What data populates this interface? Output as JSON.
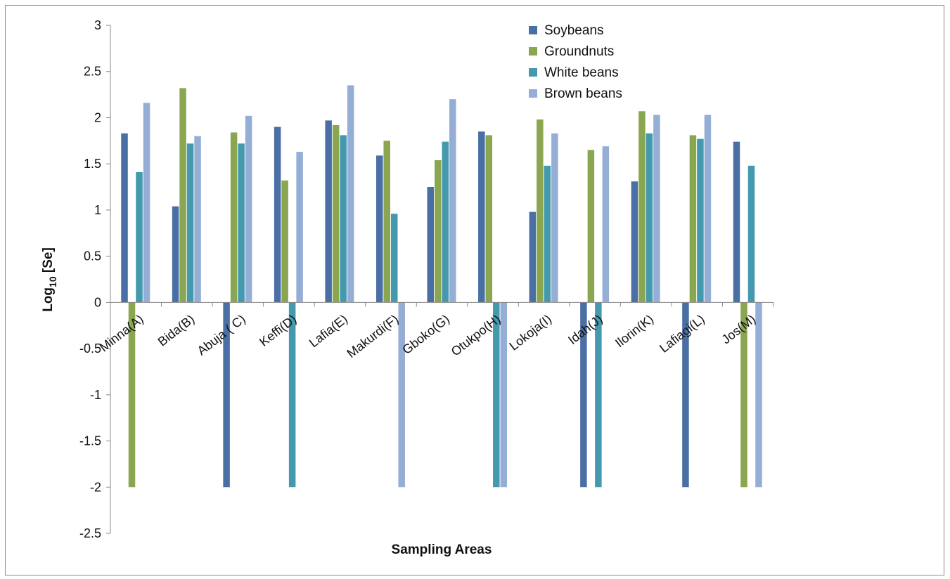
{
  "chart_data": {
    "type": "bar",
    "title": "",
    "xlabel": "Sampling Areas",
    "ylabel_main": "Log",
    "ylabel_sub": "10",
    "ylabel_rest": " [Se]",
    "ylim": [
      -2.5,
      3
    ],
    "yticks": [
      "3",
      "2.5",
      "2",
      "1.5",
      "1",
      "0.5",
      "0",
      "-0.5",
      "-1",
      "-1.5",
      "-2",
      "-2.5"
    ],
    "ytick_values": [
      3,
      2.5,
      2,
      1.5,
      1,
      0.5,
      0,
      -0.5,
      -1,
      -1.5,
      -2,
      -2.5
    ],
    "grid": false,
    "legend_position": "top-right",
    "categories": [
      "Minna(A)",
      "Bida(B)",
      "Abuja ( C)",
      "Keffi(D)",
      "Lafia(E)",
      "Makurdi(F)",
      "Gboko(G)",
      "Otukpo(H)",
      "Lokoja(I)",
      "Idah(J)",
      "Ilorin(K)",
      "Lafiagi(L)",
      "Jos(M)"
    ],
    "series": [
      {
        "name": "Soybeans",
        "color": "#4a6fa5",
        "values": [
          1.83,
          1.04,
          -2,
          1.9,
          1.97,
          1.59,
          1.25,
          1.85,
          0.98,
          -2,
          1.31,
          -2,
          1.74
        ]
      },
      {
        "name": "Groundnuts",
        "color": "#8aa650",
        "values": [
          -2,
          2.32,
          1.84,
          1.32,
          1.92,
          1.75,
          1.54,
          1.81,
          1.98,
          1.65,
          2.07,
          1.81,
          -2
        ]
      },
      {
        "name": "White beans",
        "color": "#4499ae",
        "values": [
          1.41,
          1.72,
          1.72,
          -2,
          1.81,
          0.96,
          1.74,
          -2,
          1.48,
          -2,
          1.83,
          1.77,
          1.48
        ]
      },
      {
        "name": "Brown beans",
        "color": "#95aed6",
        "values": [
          2.16,
          1.8,
          2.02,
          1.63,
          2.35,
          -2,
          2.2,
          -2,
          1.83,
          1.69,
          2.03,
          2.03,
          -2
        ]
      }
    ]
  }
}
